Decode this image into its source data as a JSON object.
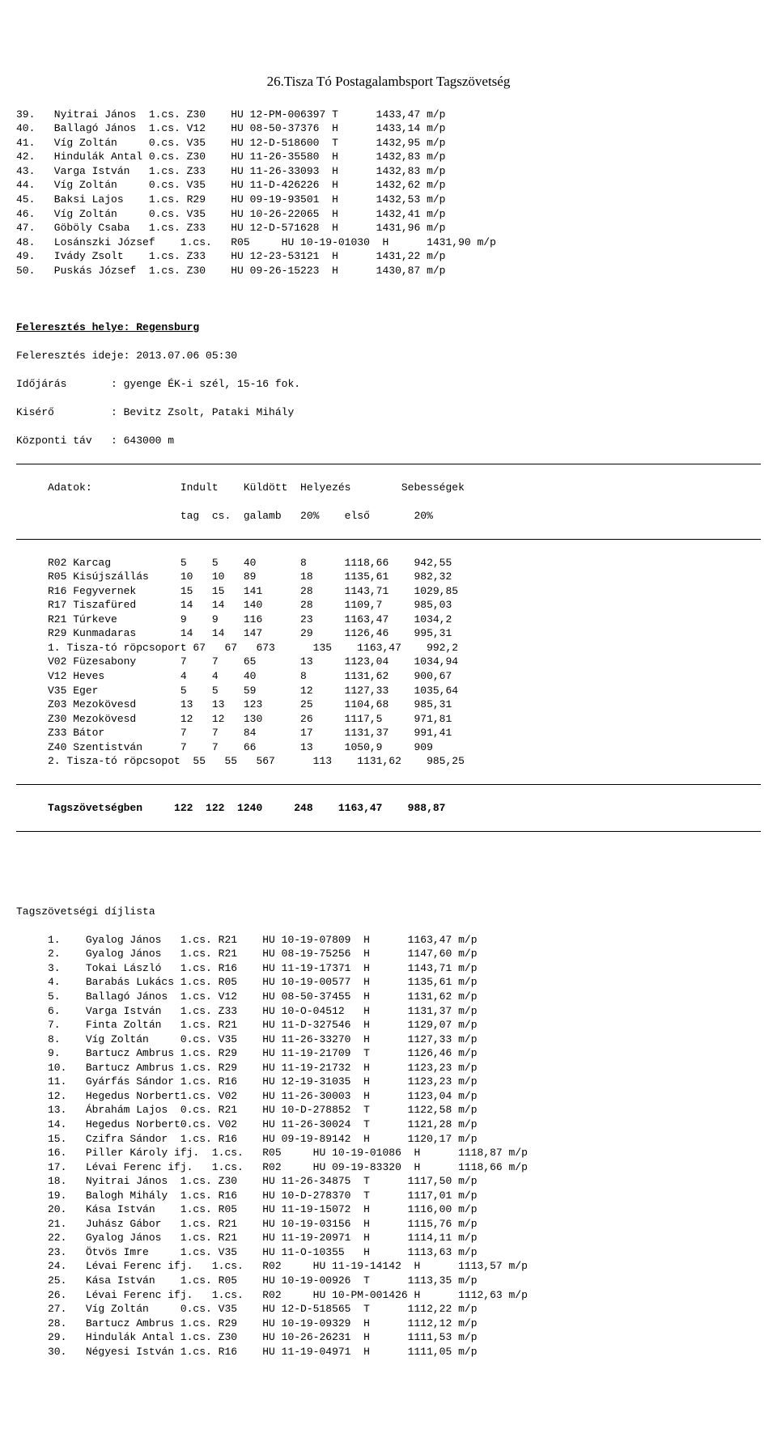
{
  "title": "26.Tisza Tó Postagalambsport Tagszövetség",
  "list1": [
    {
      "n": "39.",
      "name": "Nyitrai János",
      "cs": "1.cs.",
      "club": "Z30",
      "code": "HU 12-PM-006397",
      "t": "T",
      "val": "1433,47 m/p"
    },
    {
      "n": "40.",
      "name": "Ballagó János",
      "cs": "1.cs.",
      "club": "V12",
      "code": "HU 08-50-37376",
      "t": "H",
      "val": "1433,14 m/p"
    },
    {
      "n": "41.",
      "name": "Víg Zoltán",
      "cs": "0.cs.",
      "club": "V35",
      "code": "HU 12-D-518600",
      "t": "T",
      "val": "1432,95 m/p"
    },
    {
      "n": "42.",
      "name": "Hindulák Antal",
      "cs": "0.cs.",
      "club": "Z30",
      "code": "HU 11-26-35580",
      "t": "H",
      "val": "1432,83 m/p"
    },
    {
      "n": "43.",
      "name": "Varga István",
      "cs": "1.cs.",
      "club": "Z33",
      "code": "HU 11-26-33093",
      "t": "H",
      "val": "1432,83 m/p"
    },
    {
      "n": "44.",
      "name": "Víg Zoltán",
      "cs": "0.cs.",
      "club": "V35",
      "code": "HU 11-D-426226",
      "t": "H",
      "val": "1432,62 m/p"
    },
    {
      "n": "45.",
      "name": "Baksi Lajos",
      "cs": "1.cs.",
      "club": "R29",
      "code": "HU 09-19-93501",
      "t": "H",
      "val": "1432,53 m/p"
    },
    {
      "n": "46.",
      "name": "Víg Zoltán",
      "cs": "0.cs.",
      "club": "V35",
      "code": "HU 10-26-22065",
      "t": "H",
      "val": "1432,41 m/p"
    },
    {
      "n": "47.",
      "name": "Göböly Csaba",
      "cs": "1.cs.",
      "club": "Z33",
      "code": "HU 12-D-571628",
      "t": "H",
      "val": "1431,96 m/p"
    },
    {
      "n": "48.",
      "name": "Losánszki József",
      "cs": "",
      "club": "1.cs.",
      "club2": "R05",
      "code": "HU 10-19-01030",
      "t": "H",
      "val": "1431,90 m/p",
      "wide": true
    },
    {
      "n": "49.",
      "name": "Ivády Zsolt",
      "cs": "1.cs.",
      "club": "Z33",
      "code": "HU 12-23-53121",
      "t": "H",
      "val": "1431,22 m/p"
    },
    {
      "n": "50.",
      "name": "Puskás József",
      "cs": "1.cs.",
      "club": "Z30",
      "code": "HU 09-26-15223",
      "t": "H",
      "val": "1430,87 m/p"
    }
  ],
  "section": {
    "loc_label": "Feleresztés helye: Regensburg",
    "time_label": "Feleresztés ideje: 2013.07.06 05:30",
    "weather": "Időjárás       : gyenge ÉK-i szél, 15-16 fok.",
    "escort": "Kisérő         : Bevitz Zsolt, Pataki Mihály",
    "dist": "Központi táv   : 643000 m",
    "hdr1": "     Adatok:              Indult    Küldött  Helyezés        Sebességek",
    "hdr2": "                          tag  cs.  galamb   20%    első       20%",
    "rows": [
      "     R02 Karcag           5    5    40       8      1118,66    942,55",
      "     R05 Kisújszállás     10   10   89       18     1135,61    982,32",
      "     R16 Fegyvernek       15   15   141      28     1143,71    1029,85",
      "     R17 Tiszafüred       14   14   140      28     1109,7     985,03",
      "     R21 Túrkeve          9    9    116      23     1163,47    1034,2",
      "     R29 Kunmadaras       14   14   147      29     1126,46    995,31",
      "     1. Tisza-tó röpcsoport 67   67   673      135    1163,47    992,2",
      "     V02 Füzesabony       7    7    65       13     1123,04    1034,94",
      "     V12 Heves            4    4    40       8      1131,62    900,67",
      "     V35 Eger             5    5    59       12     1127,33    1035,64",
      "     Z03 Mezokövesd       13   13   123      25     1104,68    985,31",
      "     Z30 Mezokövesd       12   12   130      26     1117,5     971,81",
      "     Z33 Bátor            7    7    84       17     1131,37    991,41",
      "     Z40 Szentistván      7    7    66       13     1050,9     909",
      "     2. Tisza-tó röpcsopot  55   55   567      113    1131,62    985,25"
    ],
    "total": "     Tagszövetségben     122  122  1240     248    1163,47    988,87"
  },
  "list2_title": "Tagszövetségi díjlista",
  "list2": [
    {
      "n": "1.",
      "name": "Gyalog János",
      "cs": "1.cs.",
      "club": "R21",
      "code": "HU 10-19-07809",
      "t": "H",
      "val": "1163,47 m/p"
    },
    {
      "n": "2.",
      "name": "Gyalog János",
      "cs": "1.cs.",
      "club": "R21",
      "code": "HU 08-19-75256",
      "t": "H",
      "val": "1147,60 m/p"
    },
    {
      "n": "3.",
      "name": "Tokai László",
      "cs": "1.cs.",
      "club": "R16",
      "code": "HU 11-19-17371",
      "t": "H",
      "val": "1143,71 m/p"
    },
    {
      "n": "4.",
      "name": "Barabás Lukács",
      "cs": "1.cs.",
      "club": "R05",
      "code": "HU 10-19-00577",
      "t": "H",
      "val": "1135,61 m/p"
    },
    {
      "n": "5.",
      "name": "Ballagó János",
      "cs": "1.cs.",
      "club": "V12",
      "code": "HU 08-50-37455",
      "t": "H",
      "val": "1131,62 m/p"
    },
    {
      "n": "6.",
      "name": "Varga István",
      "cs": "1.cs.",
      "club": "Z33",
      "code": "HU 10-O-04512",
      "t": "H",
      "val": "1131,37 m/p"
    },
    {
      "n": "7.",
      "name": "Finta Zoltán",
      "cs": "1.cs.",
      "club": "R21",
      "code": "HU 11-D-327546",
      "t": "H",
      "val": "1129,07 m/p"
    },
    {
      "n": "8.",
      "name": "Víg Zoltán",
      "cs": "0.cs.",
      "club": "V35",
      "code": "HU 11-26-33270",
      "t": "H",
      "val": "1127,33 m/p"
    },
    {
      "n": "9.",
      "name": "Bartucz Ambrus",
      "cs": "1.cs.",
      "club": "R29",
      "code": "HU 11-19-21709",
      "t": "T",
      "val": "1126,46 m/p"
    },
    {
      "n": "10.",
      "name": "Bartucz Ambrus",
      "cs": "1.cs.",
      "club": "R29",
      "code": "HU 11-19-21732",
      "t": "H",
      "val": "1123,23 m/p"
    },
    {
      "n": "11.",
      "name": "Gyárfás Sándor",
      "cs": "1.cs.",
      "club": "R16",
      "code": "HU 12-19-31035",
      "t": "H",
      "val": "1123,23 m/p"
    },
    {
      "n": "12.",
      "name": "Hegedus Norbert",
      "cs": "1.cs.",
      "club": "V02",
      "code": "HU 11-26-30003",
      "t": "H",
      "val": "1123,04 m/p"
    },
    {
      "n": "13.",
      "name": "Ábrahám Lajos",
      "cs": "0.cs.",
      "club": "R21",
      "code": "HU 10-D-278852",
      "t": "T",
      "val": "1122,58 m/p"
    },
    {
      "n": "14.",
      "name": "Hegedus Norbert",
      "cs": "0.cs.",
      "club": "V02",
      "code": "HU 11-26-30024",
      "t": "T",
      "val": "1121,28 m/p"
    },
    {
      "n": "15.",
      "name": "Czifra Sándor",
      "cs": "1.cs.",
      "club": "R16",
      "code": "HU 09-19-89142",
      "t": "H",
      "val": "1120,17 m/p"
    },
    {
      "n": "16.",
      "name": "Piller Károly ifj.",
      "cs": "",
      "club": "1.cs.",
      "club2": "R05",
      "code": "HU 10-19-01086",
      "t": "H",
      "val": "1118,87 m/p",
      "wide": true
    },
    {
      "n": "17.",
      "name": "Lévai Ferenc ifj.",
      "cs": "",
      "club": "1.cs.",
      "club2": "R02",
      "code": "HU 09-19-83320",
      "t": "H",
      "val": "1118,66 m/p",
      "wide": true
    },
    {
      "n": "18.",
      "name": "Nyitrai János",
      "cs": "1.cs.",
      "club": "Z30",
      "code": "HU 11-26-34875",
      "t": "T",
      "val": "1117,50 m/p"
    },
    {
      "n": "19.",
      "name": "Balogh Mihály",
      "cs": "1.cs.",
      "club": "R16",
      "code": "HU 10-D-278370",
      "t": "T",
      "val": "1117,01 m/p"
    },
    {
      "n": "20.",
      "name": "Kása István",
      "cs": "1.cs.",
      "club": "R05",
      "code": "HU 11-19-15072",
      "t": "H",
      "val": "1116,00 m/p"
    },
    {
      "n": "21.",
      "name": "Juhász Gábor",
      "cs": "1.cs.",
      "club": "R21",
      "code": "HU 10-19-03156",
      "t": "H",
      "val": "1115,76 m/p"
    },
    {
      "n": "22.",
      "name": "Gyalog János",
      "cs": "1.cs.",
      "club": "R21",
      "code": "HU 11-19-20971",
      "t": "H",
      "val": "1114,11 m/p"
    },
    {
      "n": "23.",
      "name": "Ötvös Imre",
      "cs": "1.cs.",
      "club": "V35",
      "code": "HU 11-O-10355",
      "t": "H",
      "val": "1113,63 m/p"
    },
    {
      "n": "24.",
      "name": "Lévai Ferenc ifj.",
      "cs": "",
      "club": "1.cs.",
      "club2": "R02",
      "code": "HU 11-19-14142",
      "t": "H",
      "val": "1113,57 m/p",
      "wide": true
    },
    {
      "n": "25.",
      "name": "Kása István",
      "cs": "1.cs.",
      "club": "R05",
      "code": "HU 10-19-00926",
      "t": "T",
      "val": "1113,35 m/p"
    },
    {
      "n": "26.",
      "name": "Lévai Ferenc ifj.",
      "cs": "",
      "club": "1.cs.",
      "club2": "R02",
      "code": "HU 10-PM-001426",
      "t": "H",
      "val": "1112,63 m/p",
      "wide": true
    },
    {
      "n": "27.",
      "name": "Víg Zoltán",
      "cs": "0.cs.",
      "club": "V35",
      "code": "HU 12-D-518565",
      "t": "T",
      "val": "1112,22 m/p"
    },
    {
      "n": "28.",
      "name": "Bartucz Ambrus",
      "cs": "1.cs.",
      "club": "R29",
      "code": "HU 10-19-09329",
      "t": "H",
      "val": "1112,12 m/p"
    },
    {
      "n": "29.",
      "name": "Hindulák Antal",
      "cs": "1.cs.",
      "club": "Z30",
      "code": "HU 10-26-26231",
      "t": "H",
      "val": "1111,53 m/p"
    },
    {
      "n": "30.",
      "name": "Négyesi István",
      "cs": "1.cs.",
      "club": "R16",
      "code": "HU 11-19-04971",
      "t": "H",
      "val": "1111,05 m/p"
    }
  ]
}
